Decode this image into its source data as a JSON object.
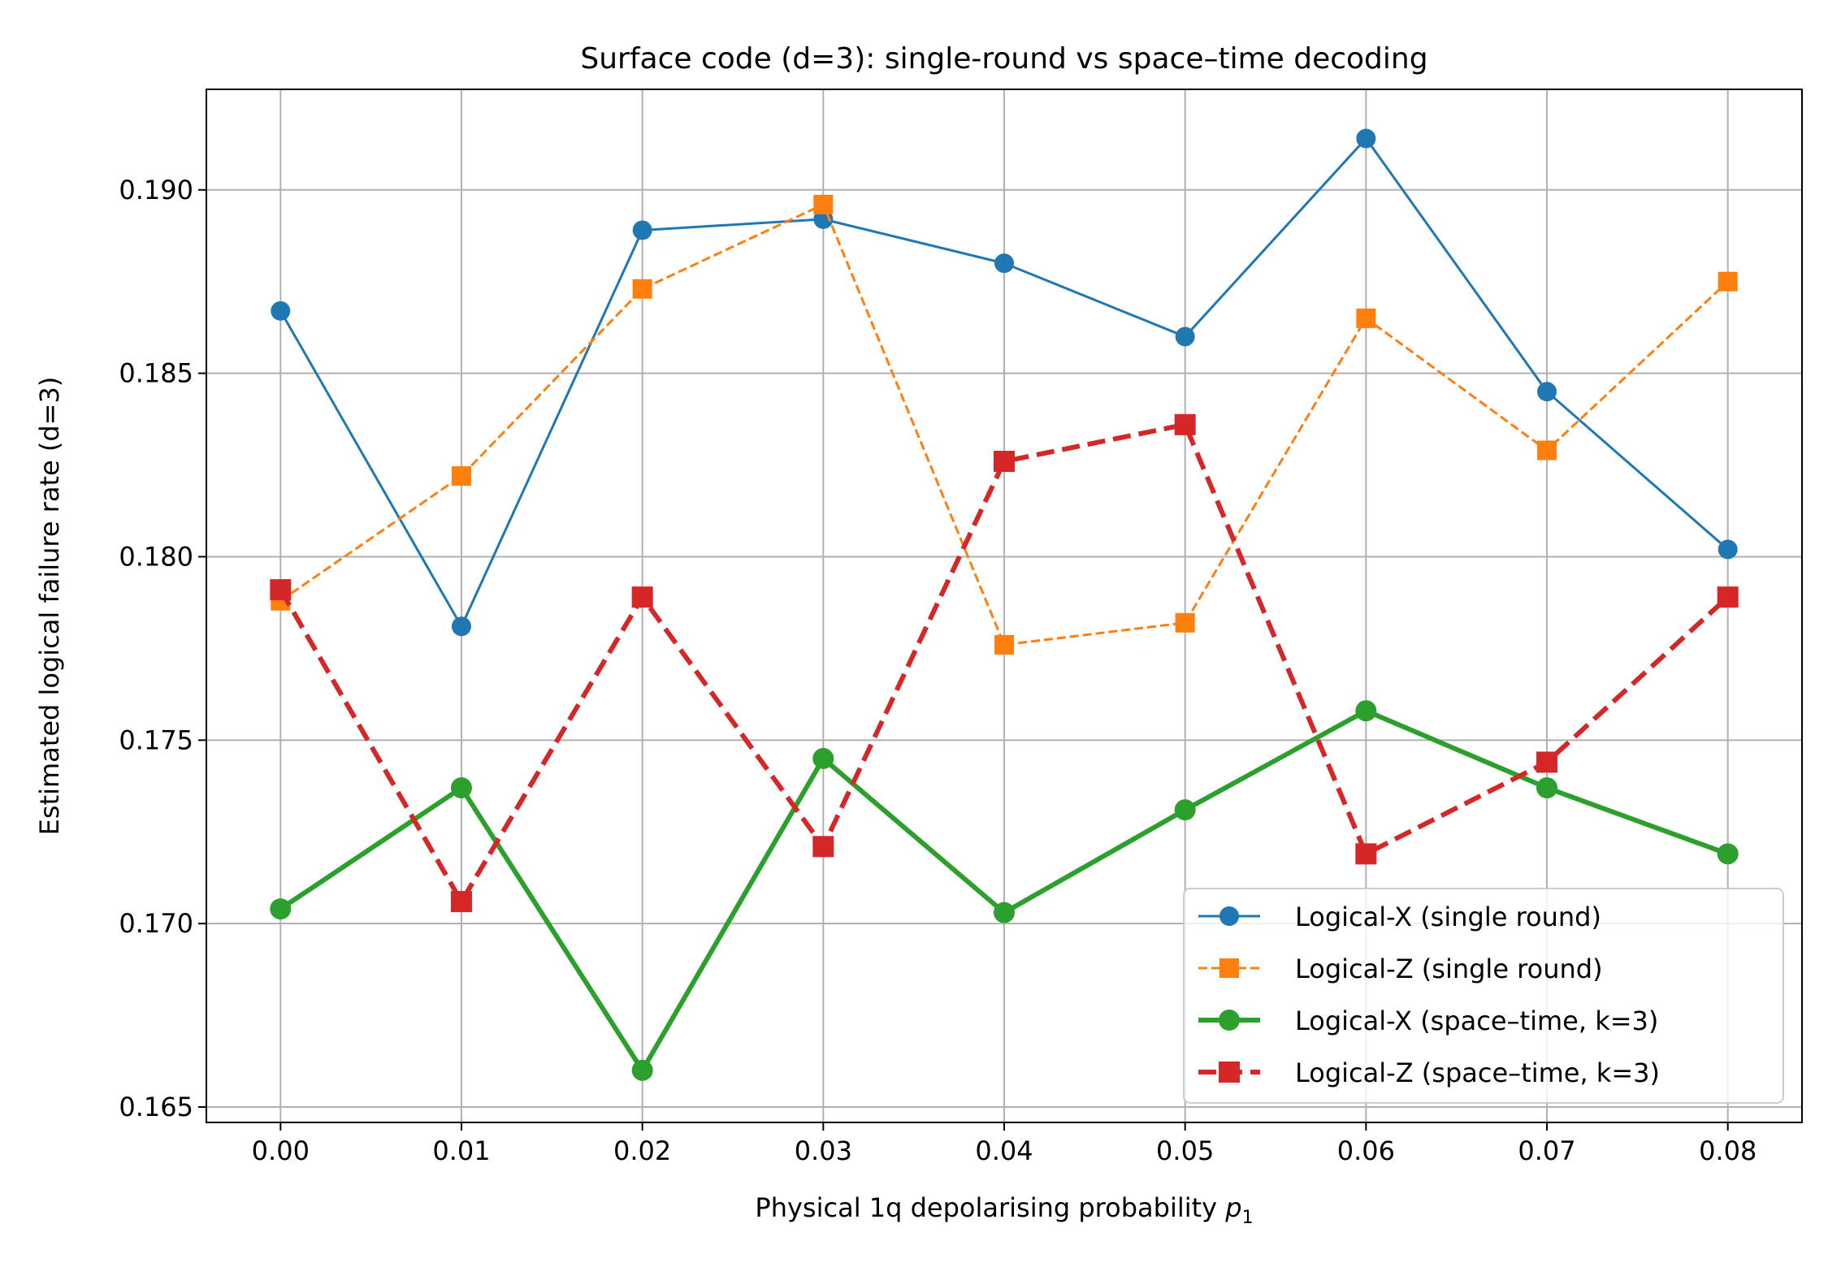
{
  "chart_data": {
    "type": "line",
    "title": "Surface code (d=3): single-round vs space–time decoding",
    "xlabel": "Physical 1q depolarising probability ",
    "xlabel_math": "p",
    "xlabel_math_sub": "1",
    "ylabel": "Estimated logical failure rate (d=3)",
    "x": [
      0.0,
      0.01,
      0.02,
      0.03,
      0.04,
      0.05,
      0.06,
      0.07,
      0.08
    ],
    "xlim": [
      -0.0041,
      0.0841
    ],
    "ylim": [
      0.16458,
      0.19274
    ],
    "xticks": [
      {
        "value": 0.0,
        "label": "0.00"
      },
      {
        "value": 0.01,
        "label": "0.01"
      },
      {
        "value": 0.02,
        "label": "0.02"
      },
      {
        "value": 0.03,
        "label": "0.03"
      },
      {
        "value": 0.04,
        "label": "0.04"
      },
      {
        "value": 0.05,
        "label": "0.05"
      },
      {
        "value": 0.06,
        "label": "0.06"
      },
      {
        "value": 0.07,
        "label": "0.07"
      },
      {
        "value": 0.08,
        "label": "0.08"
      }
    ],
    "yticks": [
      {
        "value": 0.165,
        "label": "0.165"
      },
      {
        "value": 0.17,
        "label": "0.170"
      },
      {
        "value": 0.175,
        "label": "0.175"
      },
      {
        "value": 0.18,
        "label": "0.180"
      },
      {
        "value": 0.185,
        "label": "0.185"
      },
      {
        "value": 0.19,
        "label": "0.190"
      }
    ],
    "grid": true,
    "legend_position": "lower right",
    "series": [
      {
        "name": "Logical-X (single round)",
        "color": "#1f77b4",
        "marker": "circle",
        "dash": "solid",
        "weight": "thin",
        "values": [
          0.1867,
          0.1781,
          0.1889,
          0.1892,
          0.188,
          0.186,
          0.1914,
          0.1845,
          0.1802
        ]
      },
      {
        "name": "Logical-Z (single round)",
        "color": "#ff7f0e",
        "marker": "square",
        "dash": "dashed",
        "weight": "thin",
        "values": [
          0.1788,
          0.1822,
          0.1873,
          0.1896,
          0.1776,
          0.1782,
          0.1865,
          0.1829,
          0.1875
        ]
      },
      {
        "name": "Logical-X (space–time, k=3)",
        "color": "#2ca02c",
        "marker": "circle",
        "dash": "solid",
        "weight": "thick",
        "values": [
          0.1704,
          0.1737,
          0.166,
          0.1745,
          0.1703,
          0.1731,
          0.1758,
          0.1737,
          0.1719
        ]
      },
      {
        "name": "Logical-Z (space–time, k=3)",
        "color": "#d62728",
        "marker": "square",
        "dash": "dashed",
        "weight": "thick",
        "values": [
          0.1791,
          0.1706,
          0.1789,
          0.1721,
          0.1826,
          0.1836,
          0.1719,
          0.1744,
          0.1789
        ]
      }
    ]
  }
}
